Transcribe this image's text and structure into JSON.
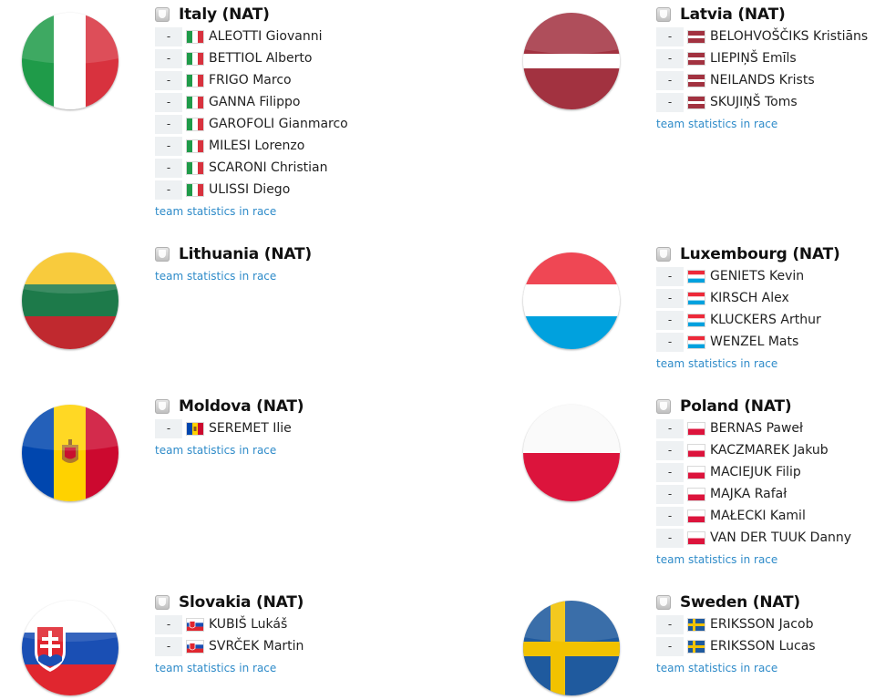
{
  "teams": [
    {
      "name": "Italy (NAT)",
      "flag": "italy-flag",
      "riders": [
        {
          "bib": "-",
          "name": "ALEOTTI Giovanni"
        },
        {
          "bib": "-",
          "name": "BETTIOL Alberto"
        },
        {
          "bib": "-",
          "name": "FRIGO Marco"
        },
        {
          "bib": "-",
          "name": "GANNA Filippo"
        },
        {
          "bib": "-",
          "name": "GAROFOLI Gianmarco"
        },
        {
          "bib": "-",
          "name": "MILESI Lorenzo"
        },
        {
          "bib": "-",
          "name": "SCARONI Christian"
        },
        {
          "bib": "-",
          "name": "ULISSI Diego"
        }
      ],
      "stats_link": "team statistics in race"
    },
    {
      "name": "Latvia (NAT)",
      "flag": "latvia-flag",
      "riders": [
        {
          "bib": "-",
          "name": "BELOHVOŠČIKS Kristiāns"
        },
        {
          "bib": "-",
          "name": "LIEPIŅŠ Emīls"
        },
        {
          "bib": "-",
          "name": "NEILANDS Krists"
        },
        {
          "bib": "-",
          "name": "SKUJIŅŠ Toms"
        }
      ],
      "stats_link": "team statistics in race"
    },
    {
      "name": "Lithuania (NAT)",
      "flag": "lithuania-flag",
      "riders": [],
      "stats_link": "team statistics in race"
    },
    {
      "name": "Luxembourg (NAT)",
      "flag": "luxembourg-flag",
      "riders": [
        {
          "bib": "-",
          "name": "GENIETS Kevin"
        },
        {
          "bib": "-",
          "name": "KIRSCH Alex"
        },
        {
          "bib": "-",
          "name": "KLUCKERS Arthur"
        },
        {
          "bib": "-",
          "name": "WENZEL Mats"
        }
      ],
      "stats_link": "team statistics in race"
    },
    {
      "name": "Moldova (NAT)",
      "flag": "moldova-flag",
      "riders": [
        {
          "bib": "-",
          "name": "SEREMET Ilie"
        }
      ],
      "stats_link": "team statistics in race"
    },
    {
      "name": "Poland (NAT)",
      "flag": "poland-flag",
      "riders": [
        {
          "bib": "-",
          "name": "BERNAS Paweł"
        },
        {
          "bib": "-",
          "name": "KACZMAREK Jakub"
        },
        {
          "bib": "-",
          "name": "MACIEJUK Filip"
        },
        {
          "bib": "-",
          "name": "MAJKA Rafał"
        },
        {
          "bib": "-",
          "name": "MAŁECKI Kamil"
        },
        {
          "bib": "-",
          "name": "VAN DER TUUK Danny"
        }
      ],
      "stats_link": "team statistics in race"
    },
    {
      "name": "Slovakia (NAT)",
      "flag": "slovakia-flag",
      "riders": [
        {
          "bib": "-",
          "name": "KUBIŠ Lukáš"
        },
        {
          "bib": "-",
          "name": "SVRČEK Martin"
        }
      ],
      "stats_link": "team statistics in race"
    },
    {
      "name": "Sweden (NAT)",
      "flag": "sweden-flag",
      "riders": [
        {
          "bib": "-",
          "name": "ERIKSSON Jacob"
        },
        {
          "bib": "-",
          "name": "ERIKSSON Lucas"
        }
      ],
      "stats_link": "team statistics in race"
    }
  ],
  "colors": {
    "link": "#2e8bc9",
    "bib_bg": "#eef1f3"
  }
}
